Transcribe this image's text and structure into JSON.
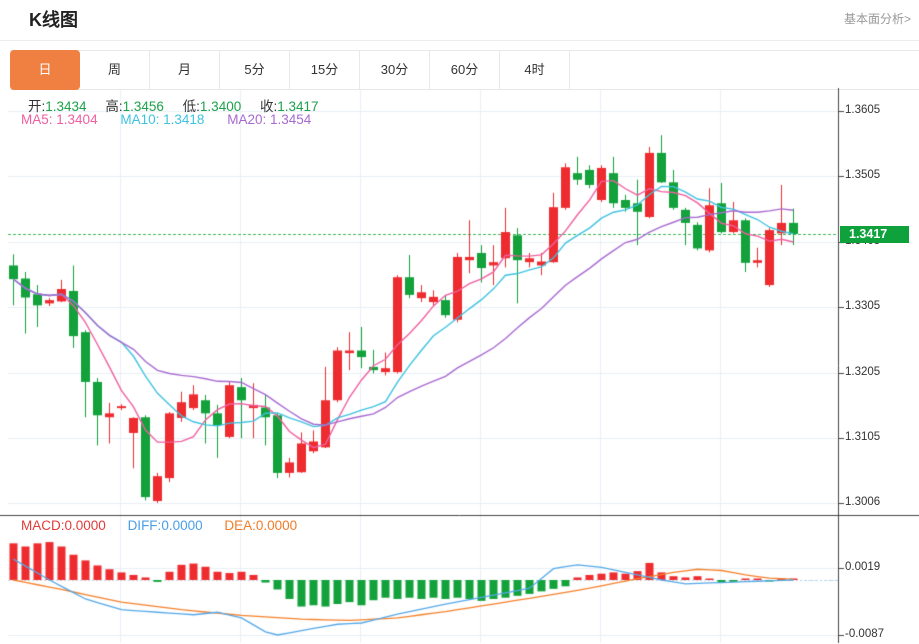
{
  "header": {
    "title": "K线图",
    "analysis_link": "基本面分析>"
  },
  "tabs": {
    "items": [
      {
        "label": "日",
        "selected": true
      },
      {
        "label": "周",
        "selected": false
      },
      {
        "label": "月",
        "selected": false
      },
      {
        "label": "5分",
        "selected": false
      },
      {
        "label": "15分",
        "selected": false
      },
      {
        "label": "30分",
        "selected": false
      },
      {
        "label": "60分",
        "selected": false
      },
      {
        "label": "4时",
        "selected": false
      }
    ]
  },
  "legend": {
    "ohlc": [
      {
        "label": "开:",
        "value": "1.3434"
      },
      {
        "label": "高:",
        "value": "1.3456"
      },
      {
        "label": "低:",
        "value": "1.3400"
      },
      {
        "label": "收:",
        "value": "1.3417"
      }
    ],
    "ma": [
      {
        "label": "MA5:",
        "value": "1.3404"
      },
      {
        "label": "MA10:",
        "value": "1.3418"
      },
      {
        "label": "MA20:",
        "value": "1.3454"
      }
    ],
    "macd": [
      {
        "label": "MACD:",
        "value": "0.0000"
      },
      {
        "label": "DIFF:",
        "value": "0.0000"
      },
      {
        "label": "DEA:",
        "value": "0.0000"
      }
    ]
  },
  "price_axis": {
    "ticks": [
      "1.3605",
      "1.3505",
      "1.3405",
      "1.3305",
      "1.3205",
      "1.3105",
      "1.3006"
    ],
    "current_label": "1.3417"
  },
  "macd_axis": {
    "ticks": [
      "0.0019",
      "-0.0087"
    ]
  },
  "colors": {
    "up": "#ee2c2f",
    "down": "#12a13b",
    "ma5": "#ef5fa0",
    "ma10": "#3ec2e0",
    "ma20": "#a86ad1",
    "diff": "#54a8e8",
    "dea": "#f5802b",
    "badge": "#0fa23c",
    "price_line": "#3cb857",
    "grid": "#e9eff6",
    "axis": "#444",
    "tab_accent": "#f08041",
    "value_green": "#1ca24a",
    "macd_zero_dash": "#ccd9e8",
    "macd_ext_dash": "#a9d2f0"
  },
  "chart_data": {
    "type": "candlestick",
    "title": "K线图",
    "price_pane": {
      "y_ticks": [
        1.3605,
        1.3505,
        1.3405,
        1.3305,
        1.3205,
        1.3105,
        1.3006
      ],
      "current_price": 1.3417,
      "ma_periods": [
        5,
        10,
        20
      ],
      "candles": [
        [
          1.3369,
          1.3386,
          1.3308,
          1.3348
        ],
        [
          1.3349,
          1.3359,
          1.3265,
          1.332
        ],
        [
          1.3325,
          1.3339,
          1.3275,
          1.3308
        ],
        [
          1.3311,
          1.3319,
          1.3307,
          1.3316
        ],
        [
          1.3314,
          1.3347,
          1.3313,
          1.3333
        ],
        [
          1.333,
          1.3369,
          1.3243,
          1.3261
        ],
        [
          1.3267,
          1.327,
          1.3137,
          1.3191
        ],
        [
          1.3191,
          1.3197,
          1.3094,
          1.314
        ],
        [
          1.3137,
          1.3159,
          1.3097,
          1.3143
        ],
        [
          1.3151,
          1.3157,
          1.3148,
          1.3154
        ],
        [
          1.3113,
          1.3137,
          1.3059,
          1.3136
        ],
        [
          1.3137,
          1.314,
          1.301,
          1.3015
        ],
        [
          1.3009,
          1.3052,
          1.3006,
          1.3047
        ],
        [
          1.3044,
          1.3145,
          1.3038,
          1.3143
        ],
        [
          1.3136,
          1.3176,
          1.313,
          1.316
        ],
        [
          1.3151,
          1.3186,
          1.3148,
          1.3172
        ],
        [
          1.3163,
          1.3171,
          1.3097,
          1.3143
        ],
        [
          1.3143,
          1.3156,
          1.3075,
          1.3125
        ],
        [
          1.3107,
          1.3191,
          1.3105,
          1.3186
        ],
        [
          1.3183,
          1.3197,
          1.3105,
          1.3163
        ],
        [
          1.3151,
          1.3189,
          1.3105,
          1.3156
        ],
        [
          1.3152,
          1.3171,
          1.3094,
          1.3137
        ],
        [
          1.314,
          1.3143,
          1.3044,
          1.3052
        ],
        [
          1.3052,
          1.3075,
          1.3045,
          1.3068
        ],
        [
          1.3053,
          1.3114,
          1.3052,
          1.3097
        ],
        [
          1.3085,
          1.3117,
          1.3082,
          1.31
        ],
        [
          1.3091,
          1.3214,
          1.309,
          1.3163
        ],
        [
          1.3163,
          1.3244,
          1.316,
          1.3239
        ],
        [
          1.3235,
          1.3267,
          1.3209,
          1.3239
        ],
        [
          1.3239,
          1.3275,
          1.3212,
          1.3229
        ],
        [
          1.3214,
          1.324,
          1.3204,
          1.3209
        ],
        [
          1.3206,
          1.3236,
          1.3201,
          1.3212
        ],
        [
          1.3206,
          1.3354,
          1.3204,
          1.3351
        ],
        [
          1.3351,
          1.3385,
          1.3319,
          1.3324
        ],
        [
          1.3319,
          1.3339,
          1.3313,
          1.3328
        ],
        [
          1.3313,
          1.3331,
          1.3308,
          1.3321
        ],
        [
          1.3316,
          1.3324,
          1.3289,
          1.3293
        ],
        [
          1.3286,
          1.3388,
          1.3282,
          1.3382
        ],
        [
          1.3377,
          1.3438,
          1.3357,
          1.3382
        ],
        [
          1.3388,
          1.34,
          1.3343,
          1.3365
        ],
        [
          1.3369,
          1.34,
          1.3339,
          1.3374
        ],
        [
          1.338,
          1.3457,
          1.3366,
          1.342
        ],
        [
          1.3415,
          1.3426,
          1.3311,
          1.3377
        ],
        [
          1.3374,
          1.3388,
          1.3366,
          1.338
        ],
        [
          1.3369,
          1.3388,
          1.3354,
          1.3375
        ],
        [
          1.3374,
          1.348,
          1.3373,
          1.3458
        ],
        [
          1.3457,
          1.3525,
          1.3454,
          1.3519
        ],
        [
          1.351,
          1.3535,
          1.3492,
          1.35
        ],
        [
          1.3515,
          1.3522,
          1.3487,
          1.3492
        ],
        [
          1.3469,
          1.3522,
          1.3466,
          1.3518
        ],
        [
          1.351,
          1.3535,
          1.3457,
          1.3464
        ],
        [
          1.3469,
          1.3477,
          1.3451,
          1.3457
        ],
        [
          1.3464,
          1.35,
          1.34,
          1.3451
        ],
        [
          1.3443,
          1.355,
          1.3441,
          1.3541
        ],
        [
          1.3541,
          1.3568,
          1.3495,
          1.3496
        ],
        [
          1.3496,
          1.3515,
          1.3454,
          1.3457
        ],
        [
          1.3454,
          1.3457,
          1.34,
          1.3434
        ],
        [
          1.3431,
          1.3435,
          1.3392,
          1.3395
        ],
        [
          1.3392,
          1.3487,
          1.3389,
          1.3461
        ],
        [
          1.3464,
          1.3495,
          1.3418,
          1.342
        ],
        [
          1.342,
          1.3466,
          1.3418,
          1.3438
        ],
        [
          1.3438,
          1.3441,
          1.3359,
          1.3373
        ],
        [
          1.3373,
          1.3396,
          1.3366,
          1.3377
        ],
        [
          1.3339,
          1.3426,
          1.3336,
          1.3423
        ],
        [
          1.3418,
          1.3492,
          1.34,
          1.3434
        ],
        [
          1.3434,
          1.3456,
          1.34,
          1.3417
        ]
      ]
    },
    "macd_pane": {
      "y_ticks": [
        0.0019,
        -0.0087
      ],
      "current_value": 0.0,
      "histogram": [
        0.0058,
        0.0053,
        0.0058,
        0.006,
        0.0053,
        0.004,
        0.0031,
        0.0023,
        0.0017,
        0.0012,
        0.0008,
        0.0004,
        -0.0003,
        0.0013,
        0.0024,
        0.0026,
        0.0021,
        0.0013,
        0.0011,
        0.0013,
        0.0008,
        -0.0004,
        -0.0015,
        -0.003,
        -0.0042,
        -0.004,
        -0.0042,
        -0.0038,
        -0.0035,
        -0.004,
        -0.0032,
        -0.0028,
        -0.003,
        -0.0028,
        -0.003,
        -0.0028,
        -0.003,
        -0.0028,
        -0.003,
        -0.0033,
        -0.003,
        -0.0028,
        -0.0025,
        -0.0022,
        -0.0018,
        -0.0014,
        -0.001,
        0.0004,
        0.0008,
        0.001,
        0.0012,
        0.001,
        0.0014,
        0.0027,
        0.0012,
        0.0006,
        0.0004,
        0.0006,
        0.0001,
        -0.0004,
        -0.0003,
        0.0001,
        0.0001,
        -0.0001,
        0.0001,
        0.0
      ],
      "diff_points": [
        [
          0,
          0.0033
        ],
        [
          3,
          0.0
        ],
        [
          6,
          -0.003
        ],
        [
          9,
          -0.0047
        ],
        [
          12,
          -0.0051
        ],
        [
          15,
          -0.0055
        ],
        [
          17,
          -0.0051
        ],
        [
          19,
          -0.006
        ],
        [
          21,
          -0.0082
        ],
        [
          22,
          -0.0087
        ],
        [
          24,
          -0.008
        ],
        [
          27,
          -0.007
        ],
        [
          29,
          -0.0068
        ],
        [
          32,
          -0.0054
        ],
        [
          35,
          -0.0042
        ],
        [
          38,
          -0.0031
        ],
        [
          40,
          -0.0024
        ],
        [
          43,
          -0.0013
        ],
        [
          45,
          0.0018
        ],
        [
          47,
          0.0024
        ],
        [
          49,
          0.002
        ],
        [
          52,
          0.0008
        ],
        [
          54,
          0.0
        ],
        [
          56,
          -0.0006
        ],
        [
          59,
          -0.0004
        ],
        [
          62,
          -0.0002
        ],
        [
          65,
          0.0
        ]
      ],
      "dea_points": [
        [
          0,
          0.0
        ],
        [
          4,
          -0.0015
        ],
        [
          9,
          -0.0035
        ],
        [
          14,
          -0.0047
        ],
        [
          19,
          -0.0056
        ],
        [
          24,
          -0.0062
        ],
        [
          28,
          -0.0064
        ],
        [
          32,
          -0.006
        ],
        [
          36,
          -0.005
        ],
        [
          40,
          -0.0038
        ],
        [
          44,
          -0.0026
        ],
        [
          48,
          -0.0013
        ],
        [
          52,
          0.0002
        ],
        [
          55,
          0.0012
        ],
        [
          57,
          0.0017
        ],
        [
          59,
          0.0015
        ],
        [
          61,
          0.0008
        ],
        [
          63,
          0.0003
        ],
        [
          65,
          0.0001
        ]
      ]
    }
  }
}
